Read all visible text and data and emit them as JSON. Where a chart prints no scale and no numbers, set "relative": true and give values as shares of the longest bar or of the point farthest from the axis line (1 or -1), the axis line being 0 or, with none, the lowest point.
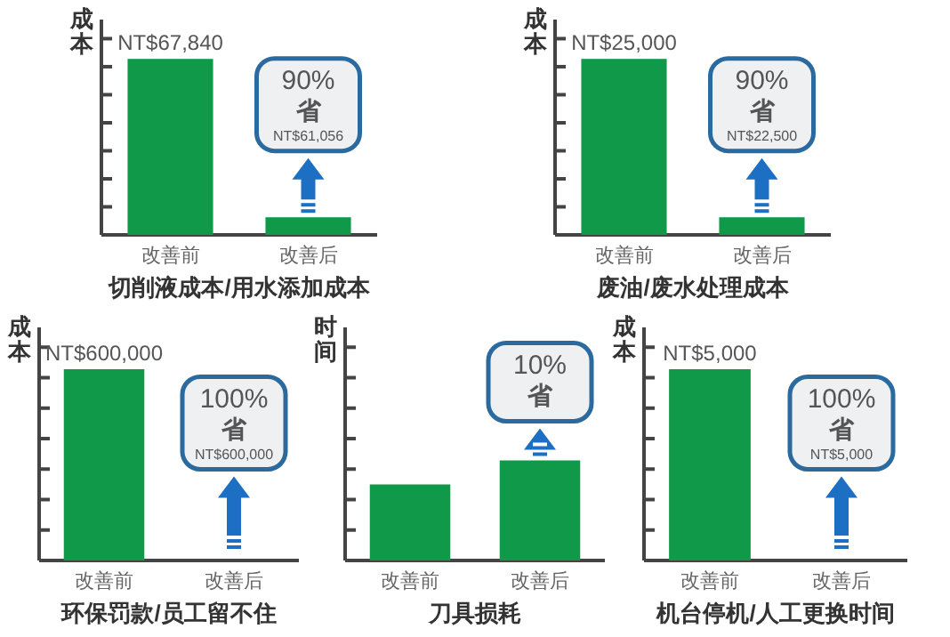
{
  "chart_data": [
    {
      "type": "bar",
      "title": "切削液成本/用水添加成本",
      "ylabel": "成本",
      "categories": [
        "改善前",
        "改善后"
      ],
      "values": [
        67840,
        6784
      ],
      "value_labels": [
        "NT$67,840",
        null
      ],
      "color": "#11994a",
      "annotations": [
        "90%\n省\nNT$61,056"
      ]
    },
    {
      "type": "bar",
      "title": "废油/废水处理成本",
      "ylabel": "成本",
      "categories": [
        "改善前",
        "改善后"
      ],
      "values": [
        25000,
        2500
      ],
      "value_labels": [
        "NT$25,000",
        null
      ],
      "color": "#11994a",
      "annotations": [
        "90%\n省\nNT$22,500"
      ]
    },
    {
      "type": "bar",
      "title": "环保罚款/员工留不住",
      "ylabel": "成本",
      "categories": [
        "改善前",
        "改善后"
      ],
      "values": [
        600000,
        0
      ],
      "value_labels": [
        "NT$600,000",
        null
      ],
      "color": "#11994a",
      "annotations": [
        "100%\n省\nNT$600,000"
      ]
    },
    {
      "type": "bar",
      "title": "刀具损耗",
      "ylabel": "时间",
      "categories": [
        "改善前",
        "改善后"
      ],
      "values": [
        0.76,
        1
      ],
      "relative": true,
      "color": "#11994a",
      "annotations": [
        "10%\n省"
      ]
    },
    {
      "type": "bar",
      "title": "机台停机/人工更换时间",
      "ylabel": "成本",
      "categories": [
        "改善前",
        "改善后"
      ],
      "values": [
        5000,
        0
      ],
      "value_labels": [
        "NT$5,000",
        null
      ],
      "color": "#11994a",
      "annotations": [
        "100%\n省\nNT$5,000"
      ]
    }
  ]
}
